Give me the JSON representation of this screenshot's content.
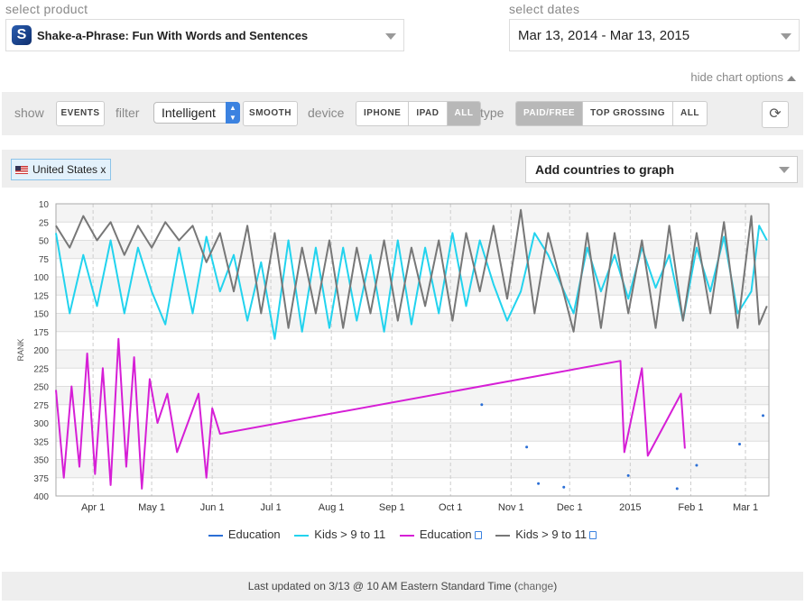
{
  "header": {
    "product_label": "select product",
    "product_value": "Shake-a-Phrase: Fun With Words and Sentences",
    "app_icon_letter": "S",
    "dates_label": "select dates",
    "dates_value": "Mar 13, 2014 - Mar 13, 2015",
    "hide_options": "hide chart options"
  },
  "toolbar": {
    "show_label": "show",
    "events_btn": "EVENTS",
    "filter_label": "filter",
    "filter_value": "Intelligent",
    "smooth_btn": "SMOOTH",
    "device_label": "device",
    "device_options": [
      "IPHONE",
      "IPAD",
      "ALL"
    ],
    "device_selected": "ALL",
    "type_label": "type",
    "type_options": [
      "PAID/FREE",
      "TOP GROSSING",
      "ALL"
    ],
    "type_selected": "PAID/FREE",
    "refresh_icon": "refresh-icon"
  },
  "countries": {
    "tag": "United States x",
    "add_placeholder": "Add countries to graph"
  },
  "chart_data": {
    "type": "line",
    "ylabel": "RANK",
    "y_reversed": true,
    "ylim": [
      10,
      400
    ],
    "yticks": [
      10,
      25,
      50,
      75,
      100,
      125,
      150,
      175,
      200,
      225,
      250,
      275,
      300,
      325,
      350,
      375,
      400
    ],
    "xlim": [
      "2014-03-13",
      "2015-03-13"
    ],
    "xticks": [
      {
        "label": "Apr 1",
        "date": "2014-04-01"
      },
      {
        "label": "May 1",
        "date": "2014-05-01"
      },
      {
        "label": "Jun 1",
        "date": "2014-06-01"
      },
      {
        "label": "Jul 1",
        "date": "2014-07-01"
      },
      {
        "label": "Aug 1",
        "date": "2014-08-01"
      },
      {
        "label": "Sep 1",
        "date": "2014-09-01"
      },
      {
        "label": "Oct 1",
        "date": "2014-10-01"
      },
      {
        "label": "Nov 1",
        "date": "2014-11-01"
      },
      {
        "label": "Dec 1",
        "date": "2014-12-01"
      },
      {
        "label": "2015",
        "date": "2015-01-01"
      },
      {
        "label": "Feb 1",
        "date": "2015-02-01"
      },
      {
        "label": "Mar 1",
        "date": "2015-03-01"
      }
    ],
    "grid": true,
    "legend_position": "bottom",
    "series": [
      {
        "name": "Education",
        "device": "iphone",
        "color": "#2b6fd6",
        "points": [
          [
            "2014-10-17",
            275
          ],
          [
            "2014-11-09",
            333
          ],
          [
            "2014-11-15",
            383
          ],
          [
            "2014-11-28",
            388
          ],
          [
            "2014-12-31",
            372
          ],
          [
            "2015-01-25",
            390
          ],
          [
            "2015-02-04",
            358
          ],
          [
            "2015-02-26",
            329
          ],
          [
            "2015-03-10",
            290
          ]
        ]
      },
      {
        "name": "Kids > 9 to 11",
        "device": "iphone",
        "color": "#22d3ee",
        "points": [
          [
            "2014-03-13",
            40
          ],
          [
            "2014-03-20",
            150
          ],
          [
            "2014-03-27",
            70
          ],
          [
            "2014-04-03",
            140
          ],
          [
            "2014-04-10",
            50
          ],
          [
            "2014-04-17",
            150
          ],
          [
            "2014-04-24",
            60
          ],
          [
            "2014-05-01",
            120
          ],
          [
            "2014-05-08",
            165
          ],
          [
            "2014-05-15",
            60
          ],
          [
            "2014-05-22",
            150
          ],
          [
            "2014-05-29",
            45
          ],
          [
            "2014-06-05",
            120
          ],
          [
            "2014-06-12",
            70
          ],
          [
            "2014-06-19",
            160
          ],
          [
            "2014-06-26",
            80
          ],
          [
            "2014-07-03",
            185
          ],
          [
            "2014-07-10",
            50
          ],
          [
            "2014-07-17",
            175
          ],
          [
            "2014-07-24",
            60
          ],
          [
            "2014-07-31",
            170
          ],
          [
            "2014-08-07",
            60
          ],
          [
            "2014-08-14",
            160
          ],
          [
            "2014-08-21",
            70
          ],
          [
            "2014-08-28",
            175
          ],
          [
            "2014-09-04",
            50
          ],
          [
            "2014-09-11",
            165
          ],
          [
            "2014-09-18",
            60
          ],
          [
            "2014-09-25",
            150
          ],
          [
            "2014-10-02",
            40
          ],
          [
            "2014-10-09",
            140
          ],
          [
            "2014-10-16",
            50
          ],
          [
            "2014-10-23",
            110
          ],
          [
            "2014-10-30",
            160
          ],
          [
            "2014-11-06",
            120
          ],
          [
            "2014-11-13",
            40
          ],
          [
            "2014-11-20",
            70
          ],
          [
            "2014-12-03",
            150
          ],
          [
            "2014-12-10",
            60
          ],
          [
            "2014-12-17",
            120
          ],
          [
            "2014-12-24",
            70
          ],
          [
            "2014-12-31",
            130
          ],
          [
            "2015-01-07",
            60
          ],
          [
            "2015-01-14",
            115
          ],
          [
            "2015-01-21",
            70
          ],
          [
            "2015-01-28",
            160
          ],
          [
            "2015-02-04",
            60
          ],
          [
            "2015-02-11",
            120
          ],
          [
            "2015-02-18",
            45
          ],
          [
            "2015-02-25",
            150
          ],
          [
            "2015-03-04",
            120
          ],
          [
            "2015-03-08",
            30
          ],
          [
            "2015-03-12",
            50
          ]
        ]
      },
      {
        "name": "Education",
        "device": "ipad",
        "color": "#d61fd6",
        "points": [
          [
            "2014-03-13",
            255
          ],
          [
            "2014-03-17",
            375
          ],
          [
            "2014-03-21",
            250
          ],
          [
            "2014-03-25",
            360
          ],
          [
            "2014-03-29",
            205
          ],
          [
            "2014-04-02",
            370
          ],
          [
            "2014-04-06",
            225
          ],
          [
            "2014-04-10",
            385
          ],
          [
            "2014-04-14",
            185
          ],
          [
            "2014-04-18",
            360
          ],
          [
            "2014-04-22",
            210
          ],
          [
            "2014-04-26",
            390
          ],
          [
            "2014-04-30",
            240
          ],
          [
            "2014-05-04",
            300
          ],
          [
            "2014-05-09",
            260
          ],
          [
            "2014-05-14",
            340
          ],
          [
            "2014-05-25",
            260
          ],
          [
            "2014-05-29",
            375
          ],
          [
            "2014-06-01",
            280
          ],
          [
            "2014-06-05",
            315
          ],
          [
            "2014-12-27",
            215
          ],
          [
            "2014-12-29",
            340
          ],
          [
            "2015-01-07",
            225
          ],
          [
            "2015-01-10",
            345
          ],
          [
            "2015-01-27",
            260
          ],
          [
            "2015-01-29",
            335
          ]
        ]
      },
      {
        "name": "Kids > 9 to 11",
        "device": "ipad",
        "color": "#777777",
        "points": [
          [
            "2014-03-13",
            30
          ],
          [
            "2014-03-20",
            60
          ],
          [
            "2014-03-27",
            20
          ],
          [
            "2014-04-03",
            50
          ],
          [
            "2014-04-10",
            25
          ],
          [
            "2014-04-17",
            70
          ],
          [
            "2014-04-24",
            30
          ],
          [
            "2014-05-01",
            60
          ],
          [
            "2014-05-08",
            25
          ],
          [
            "2014-05-15",
            50
          ],
          [
            "2014-05-22",
            30
          ],
          [
            "2014-05-29",
            80
          ],
          [
            "2014-06-05",
            40
          ],
          [
            "2014-06-12",
            120
          ],
          [
            "2014-06-19",
            30
          ],
          [
            "2014-06-26",
            150
          ],
          [
            "2014-07-03",
            40
          ],
          [
            "2014-07-10",
            170
          ],
          [
            "2014-07-17",
            60
          ],
          [
            "2014-07-24",
            150
          ],
          [
            "2014-07-31",
            50
          ],
          [
            "2014-08-07",
            170
          ],
          [
            "2014-08-14",
            60
          ],
          [
            "2014-08-21",
            150
          ],
          [
            "2014-08-28",
            50
          ],
          [
            "2014-09-04",
            160
          ],
          [
            "2014-09-11",
            60
          ],
          [
            "2014-09-18",
            140
          ],
          [
            "2014-09-25",
            50
          ],
          [
            "2014-10-02",
            160
          ],
          [
            "2014-10-09",
            40
          ],
          [
            "2014-10-16",
            120
          ],
          [
            "2014-10-23",
            30
          ],
          [
            "2014-10-30",
            130
          ],
          [
            "2014-11-06",
            15
          ],
          [
            "2014-11-13",
            150
          ],
          [
            "2014-11-20",
            40
          ],
          [
            "2014-12-03",
            175
          ],
          [
            "2014-12-10",
            40
          ],
          [
            "2014-12-17",
            170
          ],
          [
            "2014-12-24",
            40
          ],
          [
            "2014-12-31",
            150
          ],
          [
            "2015-01-07",
            50
          ],
          [
            "2015-01-14",
            170
          ],
          [
            "2015-01-21",
            30
          ],
          [
            "2015-01-28",
            160
          ],
          [
            "2015-02-04",
            40
          ],
          [
            "2015-02-11",
            150
          ],
          [
            "2015-02-18",
            25
          ],
          [
            "2015-02-25",
            170
          ],
          [
            "2015-03-04",
            20
          ],
          [
            "2015-03-08",
            165
          ],
          [
            "2015-03-12",
            140
          ]
        ]
      }
    ]
  },
  "legend": {
    "items": [
      {
        "name": "Education",
        "color": "#2b6fd6",
        "device_icon": false
      },
      {
        "name": "Kids > 9 to 11",
        "color": "#22d3ee",
        "device_icon": false
      },
      {
        "name": "Education",
        "color": "#d61fd6",
        "device_icon": true
      },
      {
        "name": "Kids > 9 to 11",
        "color": "#777777",
        "device_icon": true
      }
    ]
  },
  "footer": {
    "text": "Last updated on 3/13 @ 10 AM Eastern Standard Time (",
    "link": "change",
    "close": ")"
  }
}
